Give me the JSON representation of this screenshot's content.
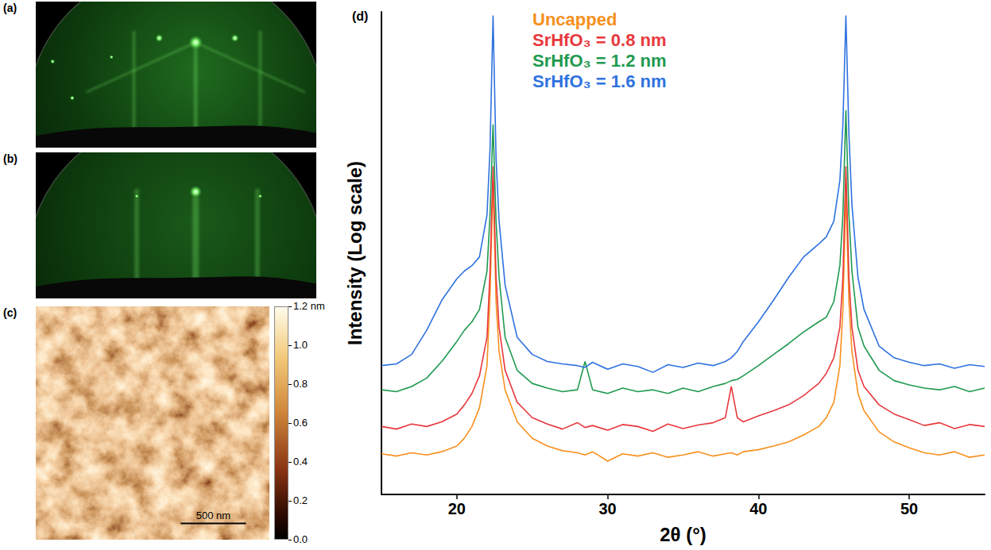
{
  "panel_a": {
    "panel_label": "(a)"
  },
  "panel_b": {
    "panel_label": "(b)"
  },
  "panel_c": {
    "panel_label": "(c)",
    "scale_bar": "500 nm",
    "colorbar": {
      "range": [
        0,
        1.2
      ],
      "ticks": [
        {
          "value": 1.2,
          "label": "1.2 nm"
        },
        {
          "value": 1.0,
          "label": "1.0"
        },
        {
          "value": 0.8,
          "label": "0.8"
        },
        {
          "value": 0.6,
          "label": "0.6"
        },
        {
          "value": 0.4,
          "label": "0.4"
        },
        {
          "value": 0.2,
          "label": "0.2"
        },
        {
          "value": 0,
          "label": "0.0"
        }
      ]
    }
  },
  "chart_data": {
    "type": "line",
    "panel_label": "(d)",
    "x_label": "2θ (°)",
    "y_label": "Intensity (Log scale)",
    "x": [
      15,
      16,
      17,
      18,
      19,
      20,
      20.5,
      21,
      21.5,
      22,
      22.2,
      22.4,
      22.6,
      22.8,
      23.2,
      24,
      25,
      26,
      27,
      28,
      28.5,
      29,
      30,
      31,
      32,
      33,
      34,
      35,
      36,
      37,
      37.8,
      38.2,
      38.6,
      39,
      40,
      41,
      42,
      43,
      44,
      44.5,
      45,
      45.4,
      45.6,
      45.8,
      46,
      46.2,
      46.6,
      47,
      48,
      49,
      50,
      51,
      52,
      53,
      54,
      55
    ],
    "series": [
      {
        "name": "Uncapped",
        "color": "#f7901e",
        "values": [
          3.2,
          3.0,
          3.3,
          3.1,
          3.4,
          4,
          5,
          7,
          12,
          40,
          300,
          8000,
          250,
          60,
          20,
          8,
          5,
          4,
          3.5,
          3.3,
          3.1,
          3.4,
          2.6,
          3.2,
          3.0,
          3.3,
          2.9,
          3.1,
          3.4,
          3.0,
          3.2,
          3.3,
          3.1,
          3.4,
          3.6,
          4,
          4.5,
          5.5,
          7,
          9,
          14,
          40,
          200,
          6000,
          250,
          60,
          18,
          11,
          6,
          4.5,
          3.8,
          3.3,
          3.1,
          3.4,
          2.9,
          3.1
        ]
      },
      {
        "name": "SrHfO₃ = 0.8 nm",
        "color": "#e8383d",
        "values": [
          7,
          6.5,
          7.5,
          7,
          8,
          10,
          13,
          18,
          30,
          90,
          600,
          12000,
          500,
          120,
          35,
          14,
          9,
          7.5,
          6.5,
          7.8,
          6.8,
          7.2,
          6.3,
          7.4,
          7,
          6.1,
          7.5,
          6.6,
          7.3,
          7.8,
          9,
          22,
          9,
          8,
          9.5,
          11,
          13,
          17,
          24,
          32,
          50,
          120,
          500,
          12000,
          500,
          120,
          35,
          22,
          13,
          10,
          8.5,
          7.2,
          7.8,
          6.6,
          7.4,
          7
        ]
      },
      {
        "name": "SrHfO₃ = 1.2 nm",
        "color": "#1f9a50",
        "values": [
          20,
          19,
          22,
          28,
          45,
          80,
          110,
          140,
          200,
          600,
          3000,
          40000,
          2500,
          500,
          90,
          35,
          24,
          21,
          19,
          20,
          45,
          20,
          18,
          21,
          19,
          20,
          18,
          21,
          19,
          22,
          24,
          26,
          27,
          30,
          40,
          55,
          75,
          105,
          140,
          160,
          250,
          700,
          3000,
          60000,
          3000,
          600,
          120,
          70,
          35,
          26,
          23,
          21,
          20,
          22,
          19,
          21
        ]
      },
      {
        "name": "SrHfO₃ = 1.6 nm",
        "color": "#2f72e0",
        "values": [
          40,
          42,
          55,
          110,
          260,
          480,
          600,
          700,
          900,
          3000,
          20000,
          900000,
          15000,
          2500,
          400,
          90,
          55,
          45,
          42,
          40,
          38,
          44,
          36,
          42,
          39,
          33,
          41,
          38,
          43,
          40,
          45,
          50,
          60,
          80,
          140,
          260,
          500,
          900,
          1300,
          1600,
          2500,
          8000,
          40000,
          900000,
          30000,
          4000,
          500,
          200,
          70,
          50,
          44,
          40,
          42,
          37,
          41,
          39
        ]
      }
    ],
    "xlim": [
      15,
      55
    ],
    "xticks": [
      20,
      30,
      40,
      50
    ],
    "ylim": [
      1,
      1000000
    ],
    "log": "y",
    "grid": false,
    "legend": "top",
    "tick_labels": "x"
  }
}
